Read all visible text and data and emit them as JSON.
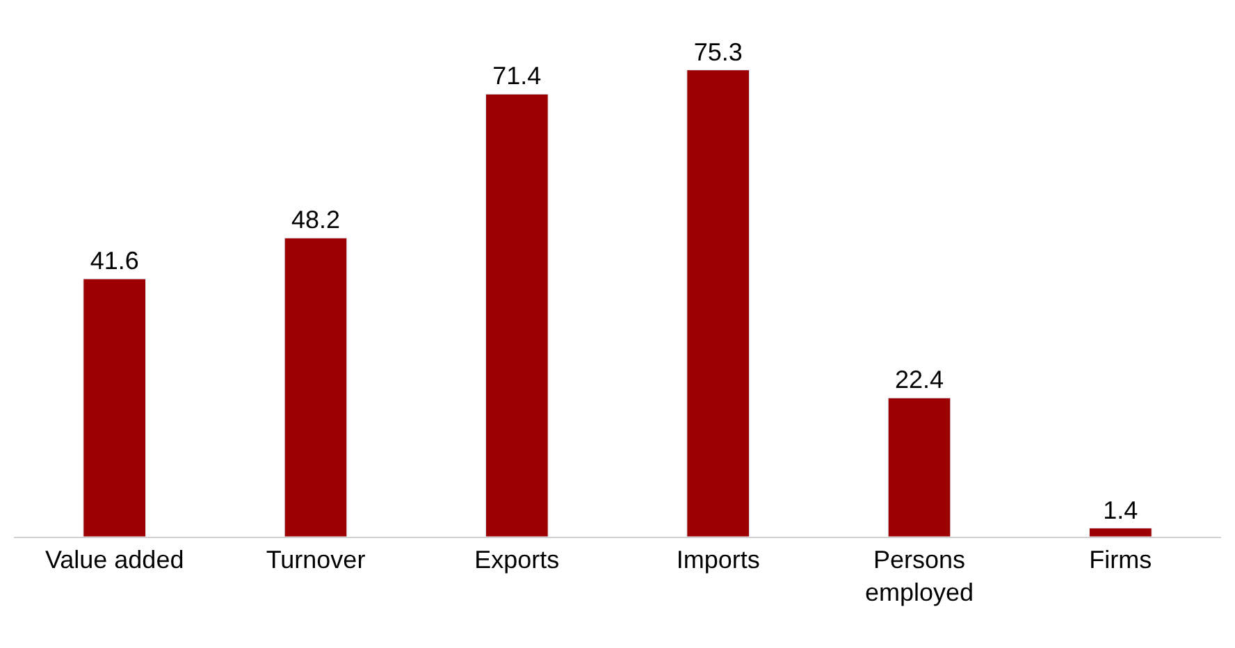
{
  "chart_data": {
    "type": "bar",
    "categories": [
      "Value added",
      "Turnover",
      "Exports",
      "Imports",
      "Persons employed",
      "Firms"
    ],
    "values": [
      41.6,
      48.2,
      71.4,
      75.3,
      22.4,
      1.4
    ],
    "color": "#9c0000",
    "data_labels": true,
    "legend": false
  }
}
